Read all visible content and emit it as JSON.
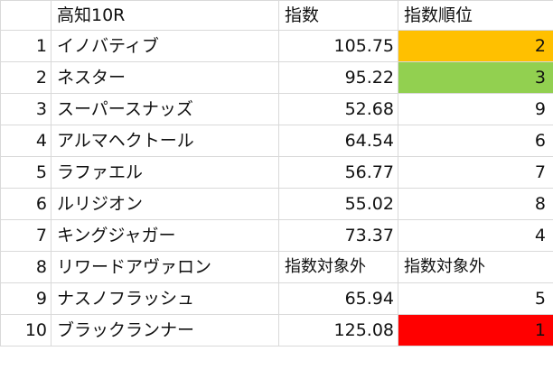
{
  "header": {
    "race": "高知10R",
    "index_label": "指数",
    "rank_label": "指数順位"
  },
  "colors": {
    "gold": "#FFC000",
    "green": "#92D050",
    "red": "#FF0000"
  },
  "rows": [
    {
      "num": "1",
      "name": "イノバティブ",
      "index": "105.75",
      "rank": "2",
      "highlight": "gold"
    },
    {
      "num": "2",
      "name": "ネスター",
      "index": "95.22",
      "rank": "3",
      "highlight": "green"
    },
    {
      "num": "3",
      "name": "スーパースナッズ",
      "index": "52.68",
      "rank": "9",
      "highlight": ""
    },
    {
      "num": "4",
      "name": "アルマヘクトール",
      "index": "64.54",
      "rank": "6",
      "highlight": ""
    },
    {
      "num": "5",
      "name": "ラファエル",
      "index": "56.77",
      "rank": "7",
      "highlight": ""
    },
    {
      "num": "6",
      "name": "ルリジオン",
      "index": "55.02",
      "rank": "8",
      "highlight": ""
    },
    {
      "num": "7",
      "name": "キングジャガー",
      "index": "73.37",
      "rank": "4",
      "highlight": ""
    },
    {
      "num": "8",
      "name": "リワードアヴァロン",
      "index": "指数対象外",
      "rank": "指数対象外",
      "highlight": ""
    },
    {
      "num": "9",
      "name": "ナスノフラッシュ",
      "index": "65.94",
      "rank": "5",
      "highlight": ""
    },
    {
      "num": "10",
      "name": "ブラックランナー",
      "index": "125.08",
      "rank": "1",
      "highlight": "red"
    }
  ]
}
